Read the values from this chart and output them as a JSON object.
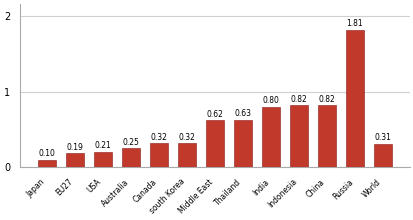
{
  "categories": [
    "Japan",
    "EU27",
    "USA",
    "Australia",
    "Canada",
    "south Korea",
    "Middle East",
    "Thailand",
    "India",
    "Indonesia",
    "China",
    "Russia",
    "World"
  ],
  "values": [
    0.1,
    0.19,
    0.21,
    0.25,
    0.32,
    0.32,
    0.62,
    0.63,
    0.8,
    0.82,
    0.82,
    1.81,
    0.31
  ],
  "bar_color": "#c0392b",
  "bar_edge_color": "#8b1a1a",
  "label_fontsize": 5.5,
  "xlabel_fontsize": 5.5,
  "ylabel_fontsize": 7,
  "ylim": [
    0,
    2.15
  ],
  "yticks": [
    0,
    1,
    2
  ],
  "background_color": "#ffffff",
  "grid_color": "#d0d0d0",
  "bar_width": 0.65
}
